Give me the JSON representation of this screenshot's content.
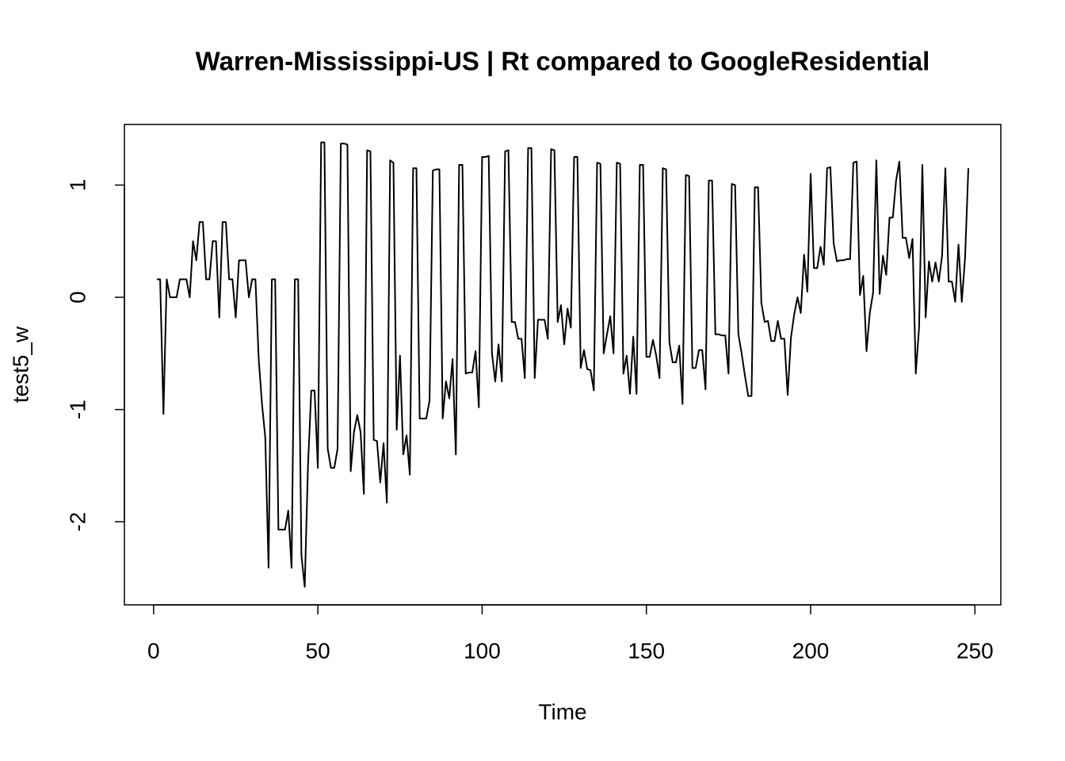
{
  "chart_data": {
    "type": "line",
    "title": "Warren-Mississippi-US | Rt compared to GoogleResidential",
    "xlabel": "Time",
    "ylabel": "test5_w",
    "x": [
      1,
      2,
      3,
      4,
      5,
      6,
      7,
      8,
      9,
      10,
      11,
      12,
      13,
      14,
      15,
      16,
      17,
      18,
      19,
      20,
      21,
      22,
      23,
      24,
      25,
      26,
      27,
      28,
      29,
      30,
      31,
      32,
      33,
      34,
      35,
      36,
      37,
      38,
      39,
      40,
      41,
      42,
      43,
      44,
      45,
      46,
      47,
      48,
      49,
      50,
      51,
      52,
      53,
      54,
      55,
      56,
      57,
      58,
      59,
      60,
      61,
      62,
      63,
      64,
      65,
      66,
      67,
      68,
      69,
      70,
      71,
      72,
      73,
      74,
      75,
      76,
      77,
      78,
      79,
      80,
      81,
      82,
      83,
      84,
      85,
      86,
      87,
      88,
      89,
      90,
      91,
      92,
      93,
      94,
      95,
      96,
      97,
      98,
      99,
      100,
      101,
      102,
      103,
      104,
      105,
      106,
      107,
      108,
      109,
      110,
      111,
      112,
      113,
      114,
      115,
      116,
      117,
      118,
      119,
      120,
      121,
      122,
      123,
      124,
      125,
      126,
      127,
      128,
      129,
      130,
      131,
      132,
      133,
      134,
      135,
      136,
      137,
      138,
      139,
      140,
      141,
      142,
      143,
      144,
      145,
      146,
      147,
      148,
      149,
      150,
      151,
      152,
      153,
      154,
      155,
      156,
      157,
      158,
      159,
      160,
      161,
      162,
      163,
      164,
      165,
      166,
      167,
      168,
      169,
      170,
      171,
      172,
      173,
      174,
      175,
      176,
      177,
      178,
      179,
      180,
      181,
      182,
      183,
      184,
      185,
      186,
      187,
      188,
      189,
      190,
      191,
      192,
      193,
      194,
      195,
      196,
      197,
      198,
      199,
      200,
      201,
      202,
      203,
      204,
      205,
      206,
      207,
      208,
      209,
      210,
      211,
      212,
      213,
      214,
      215,
      216,
      217,
      218,
      219,
      220,
      221,
      222,
      223,
      224,
      225,
      226,
      227,
      228,
      229,
      230,
      231,
      232,
      233,
      234,
      235,
      236,
      237,
      238,
      239,
      240,
      241,
      242,
      243,
      244,
      245,
      246,
      247,
      248
    ],
    "series": [
      {
        "color": "#000000",
        "values": [
          0.16,
          0.16,
          -1.04,
          0.16,
          0,
          0,
          0,
          0.16,
          0.16,
          0.16,
          0,
          0.5,
          0.33,
          0.67,
          0.67,
          0.16,
          0.16,
          0.5,
          0.5,
          -0.18,
          0.67,
          0.67,
          0.16,
          0.16,
          -0.18,
          0.33,
          0.33,
          0.33,
          0,
          0.16,
          0.16,
          -0.55,
          -0.95,
          -1.25,
          -2.41,
          0.16,
          0.16,
          -2.07,
          -2.07,
          -2.07,
          -1.9,
          -2.41,
          0.16,
          0.16,
          -2.3,
          -2.58,
          -1.5,
          -0.83,
          -0.83,
          -1.52,
          1.38,
          1.38,
          -1.35,
          -1.52,
          -1.52,
          -1.35,
          1.37,
          1.37,
          1.36,
          -1.55,
          -1.2,
          -1.05,
          -1.2,
          -1.75,
          1.31,
          1.3,
          -1.27,
          -1.28,
          -1.65,
          -1.3,
          -1.83,
          1.22,
          1.2,
          -1.18,
          -0.52,
          -1.4,
          -1.23,
          -1.58,
          1.15,
          1.15,
          -1.08,
          -1.08,
          -1.08,
          -0.92,
          1.13,
          1.14,
          1.14,
          -1.08,
          -0.75,
          -0.9,
          -0.55,
          -1.4,
          1.18,
          1.18,
          -0.68,
          -0.67,
          -0.67,
          -0.48,
          -0.98,
          1.25,
          1.25,
          1.26,
          -0.5,
          -0.75,
          -0.42,
          -0.75,
          1.3,
          1.31,
          -0.22,
          -0.22,
          -0.37,
          -0.37,
          -0.72,
          1.33,
          1.33,
          -0.72,
          -0.2,
          -0.2,
          -0.2,
          -0.37,
          1.32,
          1.31,
          -0.22,
          -0.07,
          -0.42,
          -0.1,
          -0.27,
          1.25,
          1.25,
          -0.63,
          -0.47,
          -0.64,
          -0.65,
          -0.83,
          1.2,
          1.19,
          -0.5,
          -0.33,
          -0.17,
          -0.5,
          1.2,
          1.19,
          -0.68,
          -0.52,
          -0.86,
          -0.35,
          -0.86,
          1.18,
          1.18,
          -0.53,
          -0.53,
          -0.38,
          -0.52,
          -0.72,
          1.15,
          1.14,
          -0.4,
          -0.58,
          -0.58,
          -0.43,
          -0.95,
          1.09,
          1.08,
          -0.63,
          -0.63,
          -0.47,
          -0.47,
          -0.82,
          1.04,
          1.04,
          -0.33,
          -0.33,
          -0.34,
          -0.34,
          -0.68,
          1.01,
          1,
          -0.33,
          -0.5,
          -0.7,
          -0.88,
          -0.88,
          0.98,
          0.98,
          -0.05,
          -0.22,
          -0.21,
          -0.39,
          -0.39,
          -0.21,
          -0.37,
          -0.37,
          -0.87,
          -0.36,
          -0.15,
          0,
          -0.14,
          0.38,
          0.05,
          1.1,
          0.26,
          0.26,
          0.45,
          0.29,
          1.15,
          1.16,
          0.48,
          0.32,
          0.33,
          0.33,
          0.34,
          0.34,
          1.2,
          1.21,
          0.02,
          0.19,
          -0.48,
          -0.14,
          0.04,
          1.22,
          0.03,
          0.37,
          0.2,
          0.71,
          0.71,
          1.04,
          1.21,
          0.53,
          0.53,
          0.35,
          0.52,
          -0.68,
          -0.27,
          1.18,
          -0.18,
          0.32,
          0.14,
          0.31,
          0.14,
          0.37,
          1.15,
          0.14,
          0.14,
          -0.04,
          0.47,
          -0.04,
          0.35,
          1.15
        ]
      }
    ],
    "xlim": [
      -8.88,
      257.88
    ],
    "xticks": [
      0,
      50,
      100,
      150,
      200,
      250
    ],
    "ylim": [
      -2.74,
      1.54
    ],
    "yticks": [
      -2,
      -1,
      0,
      1
    ]
  }
}
